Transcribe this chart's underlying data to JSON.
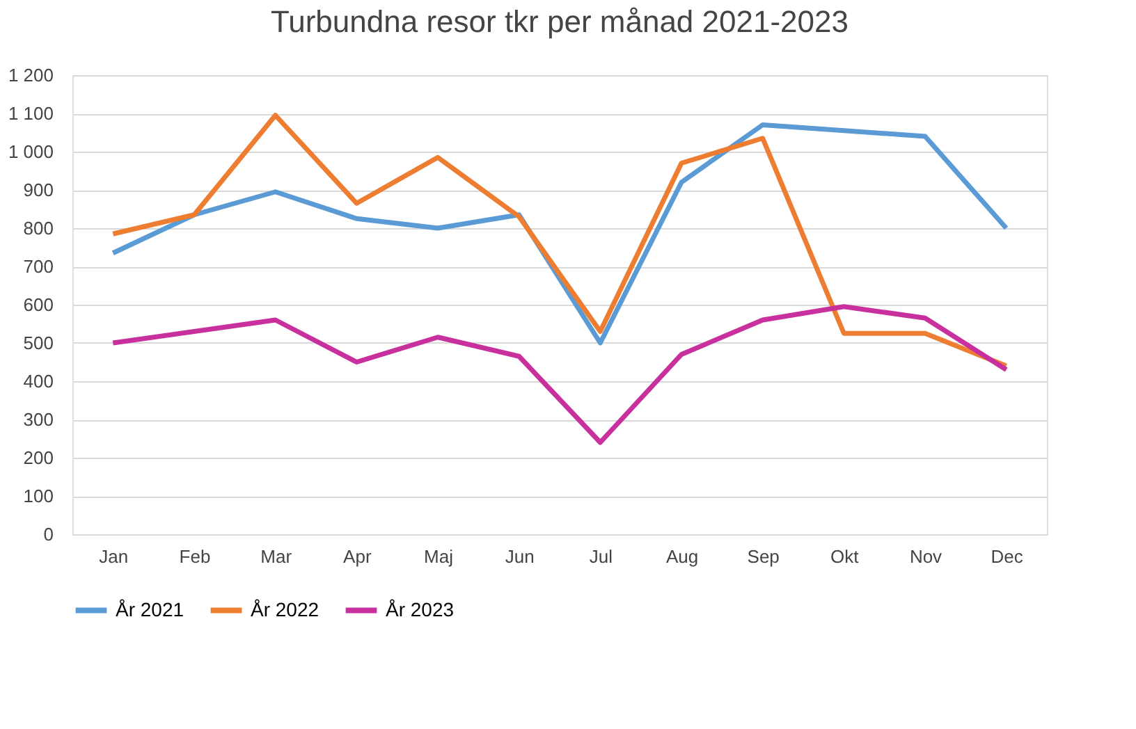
{
  "chart_data": {
    "type": "line",
    "title": "Turbundna resor tkr per månad 2021-2023",
    "categories": [
      "Jan",
      "Feb",
      "Mar",
      "Apr",
      "Maj",
      "Jun",
      "Jul",
      "Aug",
      "Sep",
      "Okt",
      "Nov",
      "Dec"
    ],
    "series": [
      {
        "name": "År 2021",
        "color": "#5b9bd5",
        "values": [
          735,
          835,
          895,
          825,
          800,
          835,
          500,
          920,
          1070,
          1055,
          1040,
          800
        ]
      },
      {
        "name": "År 2022",
        "color": "#ed7d31",
        "values": [
          785,
          835,
          1095,
          865,
          985,
          830,
          530,
          970,
          1035,
          525,
          525,
          440
        ]
      },
      {
        "name": "År 2023",
        "color": "#c8309e",
        "values": [
          500,
          530,
          560,
          450,
          515,
          465,
          240,
          470,
          560,
          595,
          565,
          430
        ]
      }
    ],
    "ylim": [
      0,
      1200
    ],
    "yticks": [
      0,
      100,
      200,
      300,
      400,
      500,
      600,
      700,
      800,
      900,
      {
        "value": 1000,
        "label": "1 000"
      },
      {
        "value": 1100,
        "label": "1 100"
      },
      {
        "value": 1200,
        "label": "1 200"
      }
    ],
    "grid": "y",
    "legend": "bottom",
    "marker": "none",
    "line_style": "solid"
  }
}
